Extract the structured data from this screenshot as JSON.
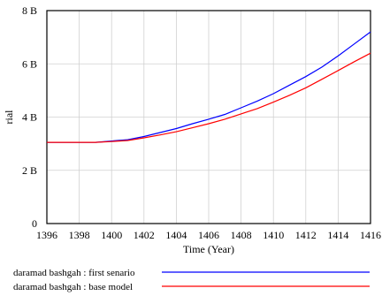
{
  "chart_data": {
    "type": "line",
    "title": "",
    "xlabel": "Time (Year)",
    "ylabel": "rial",
    "xlim": [
      1396,
      1416
    ],
    "ylim": [
      0,
      8
    ],
    "x_ticks": [
      "1396",
      "1398",
      "1400",
      "1402",
      "1404",
      "1406",
      "1408",
      "1410",
      "1412",
      "1414",
      "1416"
    ],
    "y_ticks": [
      "0",
      "2 B",
      "4 B",
      "6 B",
      "8 B"
    ],
    "grid": true,
    "legend_position": "bottom",
    "series": [
      {
        "name": "daramad bashgah : first senario",
        "color": "#0000ff",
        "x": [
          1396,
          1398,
          1399,
          1400,
          1401,
          1402,
          1403,
          1404,
          1405,
          1406,
          1407,
          1408,
          1409,
          1410,
          1411,
          1412,
          1413,
          1414,
          1415,
          1416
        ],
        "values": [
          3.05,
          3.05,
          3.05,
          3.1,
          3.15,
          3.27,
          3.42,
          3.57,
          3.75,
          3.92,
          4.1,
          4.35,
          4.6,
          4.88,
          5.2,
          5.52,
          5.88,
          6.3,
          6.75,
          7.2
        ]
      },
      {
        "name": "daramad bashgah : base model",
        "color": "#ff0000",
        "x": [
          1396,
          1398,
          1399,
          1400,
          1401,
          1402,
          1403,
          1404,
          1405,
          1406,
          1407,
          1408,
          1409,
          1410,
          1411,
          1412,
          1413,
          1414,
          1415,
          1416
        ],
        "values": [
          3.05,
          3.05,
          3.05,
          3.08,
          3.12,
          3.22,
          3.33,
          3.45,
          3.6,
          3.75,
          3.92,
          4.12,
          4.32,
          4.56,
          4.82,
          5.1,
          5.42,
          5.75,
          6.08,
          6.4
        ]
      }
    ]
  }
}
